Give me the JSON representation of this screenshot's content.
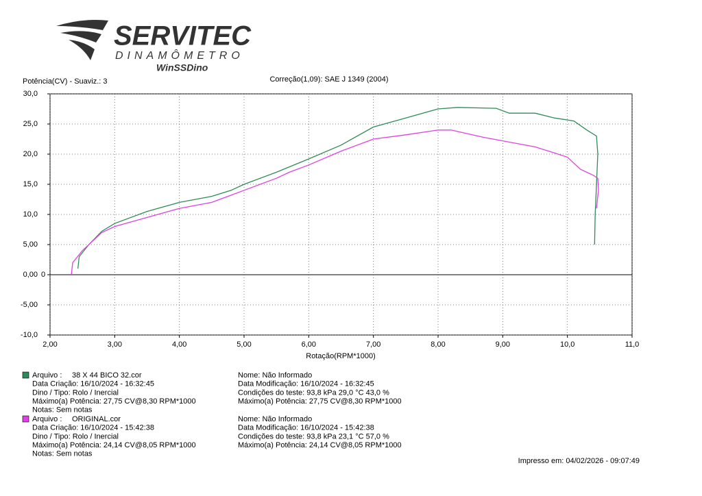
{
  "chart_data": {
    "type": "line",
    "logo": {
      "brand": "SERVITEC",
      "subtitle": "DINAMÔMETRO",
      "product": "WinSSDino"
    },
    "y_label": "Potência(CV) - Suaviz.: 3",
    "subtitle": "Correção(1,09): SAE J 1349 (2004)",
    "x_label": "Rotação(RPM*1000)",
    "zero_marker": "0",
    "xlim": [
      2,
      11
    ],
    "ylim": [
      -10,
      30
    ],
    "xticks": [
      {
        "value": 2,
        "label": "2,00"
      },
      {
        "value": 3,
        "label": "3,00"
      },
      {
        "value": 4,
        "label": "4,00"
      },
      {
        "value": 5,
        "label": "5,00"
      },
      {
        "value": 6,
        "label": "6,00"
      },
      {
        "value": 7,
        "label": "7,00"
      },
      {
        "value": 8,
        "label": "8,00"
      },
      {
        "value": 9,
        "label": "9,00"
      },
      {
        "value": 10,
        "label": "10,0"
      },
      {
        "value": 11,
        "label": "11,0"
      }
    ],
    "yticks": [
      {
        "value": -10,
        "label": "-10,0"
      },
      {
        "value": -5,
        "label": "-5,00"
      },
      {
        "value": 0,
        "label": "0,00"
      },
      {
        "value": 5,
        "label": "5,00"
      },
      {
        "value": 10,
        "label": "10,0"
      },
      {
        "value": 15,
        "label": "15,0"
      },
      {
        "value": 20,
        "label": "20,0"
      },
      {
        "value": 25,
        "label": "25,0"
      },
      {
        "value": 30,
        "label": "30,0"
      }
    ],
    "grid": true,
    "series": [
      {
        "name": "38 X 44 BICO 32.cor",
        "color": "#2e8b57",
        "x": [
          2.43,
          2.45,
          2.6,
          2.8,
          3.0,
          3.5,
          4.0,
          4.5,
          4.8,
          5.0,
          5.5,
          6.0,
          6.5,
          7.0,
          7.5,
          8.0,
          8.3,
          8.9,
          9.1,
          9.5,
          9.8,
          10.1,
          10.3,
          10.45,
          10.47,
          10.45,
          10.43,
          10.42
        ],
        "values": [
          1.0,
          3.0,
          5.0,
          7.2,
          8.5,
          10.5,
          12.0,
          13.0,
          14.0,
          15.0,
          17.0,
          19.2,
          21.5,
          24.5,
          26.0,
          27.5,
          27.75,
          27.6,
          26.8,
          26.8,
          26.0,
          25.5,
          24.0,
          23.0,
          20.0,
          15.0,
          10.0,
          5.0
        ]
      },
      {
        "name": "ORIGINAL.cor",
        "color": "#e040e0",
        "x": [
          2.33,
          2.35,
          2.5,
          2.8,
          3.0,
          3.5,
          4.0,
          4.5,
          4.7,
          5.0,
          5.5,
          5.7,
          6.0,
          6.5,
          7.0,
          7.5,
          8.0,
          8.2,
          8.7,
          9.0,
          9.5,
          9.8,
          10.0,
          10.2,
          10.4,
          10.47,
          10.48,
          10.45
        ],
        "values": [
          0.0,
          2.0,
          4.0,
          7.0,
          8.0,
          9.5,
          11.0,
          12.0,
          12.8,
          14.0,
          16.0,
          17.0,
          18.2,
          20.5,
          22.5,
          23.2,
          24.0,
          24.0,
          22.8,
          22.2,
          21.2,
          20.2,
          19.5,
          17.5,
          16.5,
          16.0,
          14.0,
          11.0
        ]
      }
    ],
    "runs": [
      {
        "file_label": "Arquivo    :",
        "left": [
          "Data Criação:   16/10/2024 - 16:32:45",
          "Dino / Tipo:  Rolo  /  Inercial",
          "Máximo(a)  Potência:  27,75 CV@8,30 RPM*1000",
          "Notas:  Sem notas"
        ],
        "right": [
          "Nome:     Não Informado",
          "Data Modificação:    16/10/2024 - 16:32:45",
          "Condições do teste:   93,8  kPa   29,0  °C   43,0 %",
          "Máximo(a)  Potência:   27,75 CV@8,30 RPM*1000"
        ]
      },
      {
        "file_label": "Arquivo    :",
        "left": [
          "Data Criação:   16/10/2024 - 15:42:38",
          "Dino / Tipo:  Rolo  /  Inercial",
          "Máximo(a)  Potência:  24,14 CV@8,05 RPM*1000",
          "Notas:  Sem notas"
        ],
        "right": [
          "Nome:     Não Informado",
          "Data Modificação:    16/10/2024 - 15:42:38",
          "Condições do teste:   93,8  kPa   23,1  °C   57,0 %",
          "Máximo(a)  Potência:   24,14 CV@8,05 RPM*1000"
        ]
      }
    ],
    "printed": "Impresso em: 04/02/2026 - 09:07:49"
  }
}
